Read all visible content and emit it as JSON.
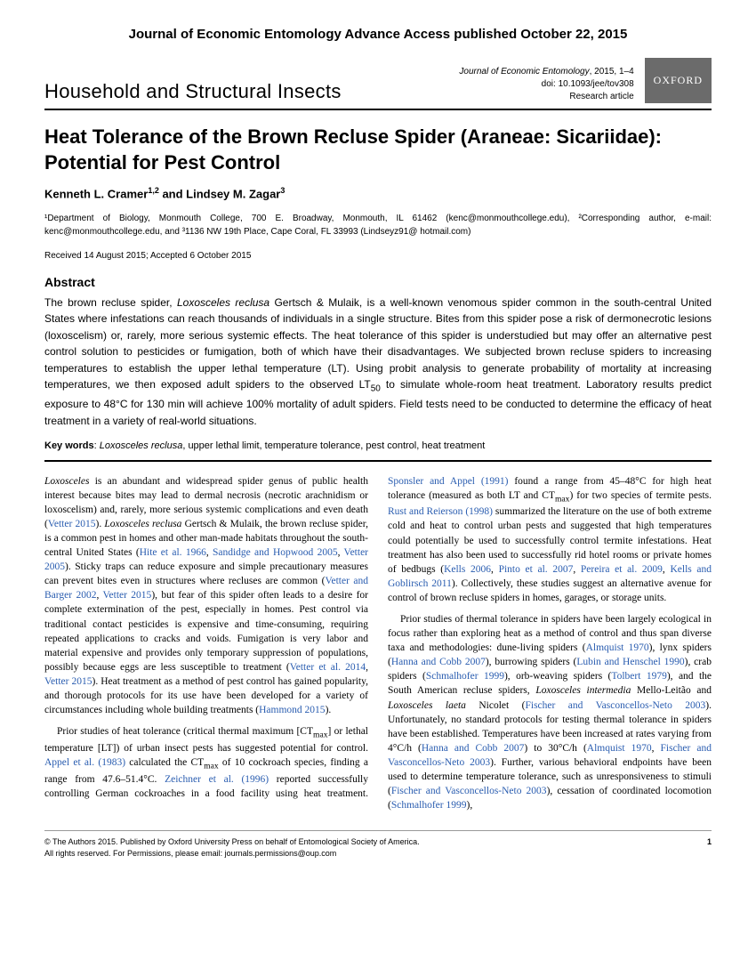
{
  "advance_access": "Journal of Economic Entomology Advance Access published October 22, 2015",
  "header": {
    "section": "Household and Structural Insects",
    "journal_name": "Journal of Economic Entomology",
    "year_pages": ", 2015, 1–4",
    "doi": "doi: 10.1093/jee/tov308",
    "article_type": "Research article",
    "badge": "OXFORD"
  },
  "title": "Heat Tolerance of the Brown Recluse Spider (Araneae: Sicariidae): Potential for Pest Control",
  "authors_html": "Kenneth L. Cramer<sup>1,2</sup> and Lindsey M. Zagar<sup>3</sup>",
  "affiliations": "¹Department of Biology, Monmouth College, 700 E. Broadway, Monmouth, IL 61462 (kenc@monmouthcollege.edu), ²Corresponding author, e-mail: kenc@monmouthcollege.edu, and ³1136 NW 19th Place, Cape Coral, FL 33993 (Lindseyz91@ hotmail.com)",
  "dates": "Received 14 August 2015; Accepted 6 October 2015",
  "abstract": {
    "heading": "Abstract",
    "text": "The brown recluse spider, <span class=\"ital\">Loxosceles reclusa</span> Gertsch & Mulaik, is a well-known venomous spider common in the south-central United States where infestations can reach thousands of individuals in a single structure. Bites from this spider pose a risk of dermonecrotic lesions (loxoscelism) or, rarely, more serious systemic effects. The heat tolerance of this spider is understudied but may offer an alternative pest control solution to pesticides or fumigation, both of which have their disadvantages. We subjected brown recluse spiders to increasing temperatures to establish the upper lethal temperature (LT). Using probit analysis to generate probability of mortality at increasing temperatures, we then exposed adult spiders to the observed LT<sub>50</sub> to simulate whole-room heat treatment. Laboratory results predict exposure to 48°C for 130 min will achieve 100% mortality of adult spiders. Field tests need to be conducted to determine the efficacy of heat treatment in a variety of real-world situations."
  },
  "keywords": {
    "label": "Key words",
    "ital": "Loxosceles reclusa",
    "rest": ", upper lethal limit, temperature tolerance, pest control, heat treatment"
  },
  "body": {
    "p1": "<span class=\"ital\">Loxosceles</span> is an abundant and widespread spider genus of public health interest because bites may lead to dermal necrosis (necrotic arachnidism or loxoscelism) and, rarely, more serious systemic complications and even death (<span class=\"ref\">Vetter 2015</span>). <span class=\"ital\">Loxosceles reclusa</span> Gertsch & Mulaik, the brown recluse spider, is a common pest in homes and other man-made habitats throughout the south-central United States (<span class=\"ref\">Hite et al. 1966</span>, <span class=\"ref\">Sandidge and Hopwood 2005</span>, <span class=\"ref\">Vetter 2005</span>). Sticky traps can reduce exposure and simple precautionary measures can prevent bites even in structures where recluses are common (<span class=\"ref\">Vetter and Barger 2002</span>, <span class=\"ref\">Vetter 2015</span>), but fear of this spider often leads to a desire for complete extermination of the pest, especially in homes. Pest control via traditional contact pesticides is expensive and time-consuming, requiring repeated applications to cracks and voids. Fumigation is very labor and material expensive and provides only temporary suppression of populations, possibly because eggs are less susceptible to treatment (<span class=\"ref\">Vetter et al. 2014</span>, <span class=\"ref\">Vetter 2015</span>). Heat treatment as a method of pest control has gained popularity, and thorough protocols for its use have been developed for a variety of circumstances including whole building treatments (<span class=\"ref\">Hammond 2015</span>).",
    "p2": "Prior studies of heat tolerance (critical thermal maximum [CT<sub>max</sub>] or lethal temperature [LT]) of urban insect pests has suggested potential for control. <span class=\"ref\">Appel et al. (1983)</span> calculated the CT<sub>max</sub> of 10 cockroach species, finding a range from 47.6–51.4°C. <span class=\"ref\">Zeichner et al. (1996)</span> reported successfully controlling German cockroaches in a food facility using heat treatment. <span class=\"ref\">Sponsler and Appel (1991)</span> found a range from 45–48°C for high heat tolerance (measured as both LT and CT<sub>max</sub>) for two species of termite pests. <span class=\"ref\">Rust and Reierson (1998)</span> summarized the literature on the use of both extreme cold and heat to control urban pests and suggested that high temperatures could potentially be used to successfully control termite infestations. Heat treatment has also been used to successfully rid hotel rooms or private homes of bedbugs (<span class=\"ref\">Kells 2006</span>, <span class=\"ref\">Pinto et al. 2007</span>, <span class=\"ref\">Pereira et al. 2009</span>, <span class=\"ref\">Kells and Goblirsch 2011</span>). Collectively, these studies suggest an alternative avenue for control of brown recluse spiders in homes, garages, or storage units.",
    "p3": "Prior studies of thermal tolerance in spiders have been largely ecological in focus rather than exploring heat as a method of control and thus span diverse taxa and methodologies: dune-living spiders (<span class=\"ref\">Almquist 1970</span>), lynx spiders (<span class=\"ref\">Hanna and Cobb 2007</span>), burrowing spiders (<span class=\"ref\">Lubin and Henschel 1990</span>), crab spiders (<span class=\"ref\">Schmalhofer 1999</span>), orb-weaving spiders (<span class=\"ref\">Tolbert 1979</span>), and the South American recluse spiders, <span class=\"ital\">Loxosceles intermedia</span> Mello-Leitão and <span class=\"ital\">Loxosceles laeta</span> Nicolet (<span class=\"ref\">Fischer and Vasconcellos-Neto 2003</span>). Unfortunately, no standard protocols for testing thermal tolerance in spiders have been established. Temperatures have been increased at rates varying from 4°C/h (<span class=\"ref\">Hanna and Cobb 2007</span>) to 30°C/h (<span class=\"ref\">Almquist 1970</span>, <span class=\"ref\">Fischer and Vasconcellos-Neto 2003</span>). Further, various behavioral endpoints have been used to determine temperature tolerance, such as unresponsiveness to stimuli (<span class=\"ref\">Fischer and Vasconcellos-Neto 2003</span>), cessation of coordinated locomotion (<span class=\"ref\">Schmalhofer 1999</span>),"
  },
  "footer": {
    "copyright": "© The Authors 2015. Published by Oxford University Press on behalf of Entomological Society of America.",
    "rights": "All rights reserved. For Permissions, please email: journals.permissions@oup.com",
    "page": "1"
  }
}
